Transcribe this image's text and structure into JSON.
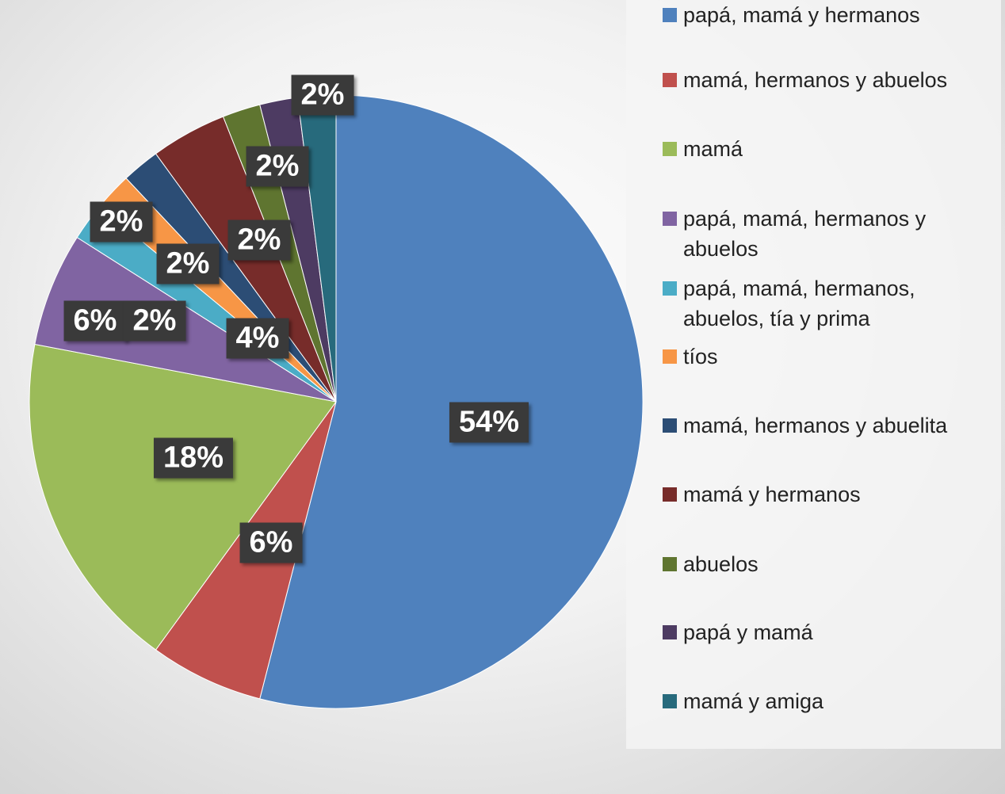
{
  "chart_data": {
    "type": "pie",
    "categories": [
      "papá, mamá y hermanos",
      "mamá, hermanos y abuelos",
      "mamá",
      "papá, mamá, hermanos y abuelos",
      "papá, mamá, hermanos, abuelos, tía y prima",
      "tíos",
      "mamá, hermanos y abuelita",
      "mamá y hermanos",
      "abuelos",
      "papá y mamá",
      "mamá y amiga"
    ],
    "values": [
      54,
      6,
      18,
      6,
      2,
      2,
      2,
      4,
      2,
      2,
      2
    ],
    "value_labels": [
      "54%",
      "6%",
      "18%",
      "6%",
      "2%",
      "2%",
      "2%",
      "4%",
      "2%",
      "2%",
      "2%"
    ],
    "colors": [
      "#4f81bd",
      "#c0504d",
      "#9bbb59",
      "#8064a2",
      "#4bacc6",
      "#f79646",
      "#2c4d75",
      "#772c2a",
      "#5f7530",
      "#4d3b62",
      "#276a7c"
    ],
    "legend": "right"
  }
}
